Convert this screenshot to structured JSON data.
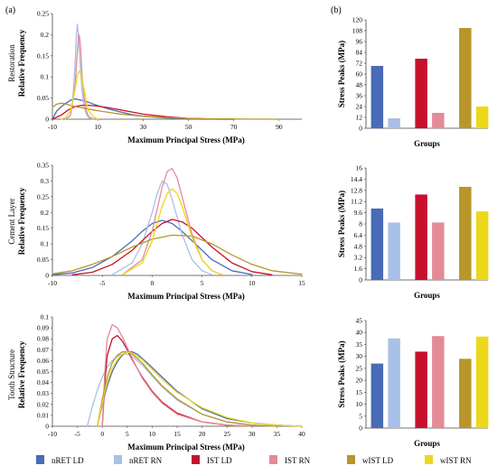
{
  "panel_labels": [
    "(a)",
    "(b)"
  ],
  "colors": {
    "nRET LD": "#4a6bb5",
    "nRET RN": "#a9c0e8",
    "IST LD": "#c8102e",
    "IST RN": "#e38b96",
    "wIST LD": "#b8962a",
    "wIST RN": "#ecd81a"
  },
  "legend": [
    "nRET LD",
    "nRET RN",
    "IST LD",
    "IST RN",
    "wIST LD",
    "wIST RN"
  ],
  "chart_data": [
    {
      "type": "line",
      "row_label": "Restoration",
      "ylabel": "Relative Frequency",
      "xlabel": "Maximum Principal Stress (MPa)",
      "xlim": [
        -10,
        100
      ],
      "ylim": [
        0,
        0.25
      ],
      "xticks": [
        "-10",
        "10",
        "30",
        "50",
        "70",
        "90"
      ],
      "xtick_values": [
        -10,
        10,
        30,
        50,
        70,
        90
      ],
      "yticks": [
        "0",
        "0.05",
        "0.1",
        "0.15",
        "0.2",
        "0.25"
      ],
      "ytick_values": [
        0,
        0.05,
        0.1,
        0.15,
        0.2,
        0.25
      ],
      "series": [
        {
          "name": "nRET LD",
          "x": [
            -10,
            -8,
            -6,
            -4,
            -2,
            0,
            2,
            4,
            6,
            8,
            10,
            15,
            20,
            25,
            30,
            40,
            50,
            60,
            70
          ],
          "y": [
            0,
            0.02,
            0.03,
            0.038,
            0.045,
            0.048,
            0.046,
            0.043,
            0.04,
            0.036,
            0.032,
            0.024,
            0.017,
            0.011,
            0.007,
            0.003,
            0.001,
            0.0004,
            0
          ]
        },
        {
          "name": "nRET RN",
          "x": [
            -4,
            -2,
            -1,
            0,
            0.5,
            1,
            1.5,
            2,
            3,
            4,
            5,
            6,
            8
          ],
          "y": [
            0,
            0.01,
            0.05,
            0.13,
            0.19,
            0.225,
            0.2,
            0.15,
            0.07,
            0.03,
            0.012,
            0.004,
            0
          ]
        },
        {
          "name": "IST LD",
          "x": [
            -10,
            -6,
            -3,
            0,
            3,
            6,
            10,
            15,
            20,
            25,
            30,
            40,
            50,
            60,
            70
          ],
          "y": [
            0,
            0.01,
            0.022,
            0.03,
            0.033,
            0.033,
            0.031,
            0.027,
            0.022,
            0.017,
            0.012,
            0.006,
            0.002,
            0.0005,
            0
          ]
        },
        {
          "name": "IST RN",
          "x": [
            -4,
            -2,
            0,
            1,
            1.5,
            2,
            2.5,
            3,
            4,
            5,
            6,
            8
          ],
          "y": [
            0,
            0.01,
            0.08,
            0.16,
            0.2,
            0.195,
            0.16,
            0.11,
            0.05,
            0.02,
            0.006,
            0
          ]
        },
        {
          "name": "wIST LD",
          "x": [
            -10,
            -8,
            -6,
            -4,
            -2,
            0,
            2,
            4,
            6,
            8,
            10,
            15,
            20,
            30,
            40,
            50,
            60,
            75,
            90
          ],
          "y": [
            0.028,
            0.036,
            0.038,
            0.036,
            0.033,
            0.03,
            0.028,
            0.026,
            0.024,
            0.022,
            0.02,
            0.016,
            0.012,
            0.007,
            0.004,
            0.002,
            0.001,
            0.0003,
            0
          ]
        },
        {
          "name": "wIST RN",
          "x": [
            -6,
            -4,
            -2,
            0,
            1,
            2,
            3,
            4,
            5,
            6,
            8,
            10
          ],
          "y": [
            0,
            0.005,
            0.02,
            0.07,
            0.105,
            0.115,
            0.1,
            0.07,
            0.04,
            0.02,
            0.006,
            0
          ]
        }
      ]
    },
    {
      "type": "bar",
      "ylabel": "Stress Peaks (MPa)",
      "xlabel": "Groups",
      "ylim": [
        0,
        120
      ],
      "yticks": [
        "0",
        "12",
        "24",
        "36",
        "48",
        "60",
        "72",
        "84",
        "96",
        "108",
        "120"
      ],
      "ytick_values": [
        0,
        12,
        24,
        36,
        48,
        60,
        72,
        84,
        96,
        108,
        120
      ],
      "categories": [
        "nRET LD",
        "nRET RN",
        "IST LD",
        "IST RN",
        "wIST LD",
        "wIST RN"
      ],
      "values": [
        69,
        11,
        77,
        17,
        111,
        24
      ]
    },
    {
      "type": "line",
      "row_label": "Cement Layer",
      "ylabel": "Relative Frequency",
      "xlabel": "Maximum Principal Stress (MPa)",
      "xlim": [
        -10,
        15
      ],
      "ylim": [
        0,
        0.35
      ],
      "xticks": [
        "-10",
        "-5",
        "0",
        "5",
        "10",
        "15"
      ],
      "xtick_values": [
        -10,
        -5,
        0,
        5,
        10,
        15
      ],
      "yticks": [
        "0",
        "0.05",
        "0.1",
        "0.15",
        "0.2",
        "0.25",
        "0.3",
        "0.35"
      ],
      "ytick_values": [
        0,
        0.05,
        0.1,
        0.15,
        0.2,
        0.25,
        0.3,
        0.35
      ],
      "series": [
        {
          "name": "nRET LD",
          "x": [
            -10,
            -8,
            -6,
            -4,
            -2,
            -1,
            0,
            1,
            2,
            3,
            4,
            6,
            8,
            10
          ],
          "y": [
            0.002,
            0.008,
            0.025,
            0.06,
            0.11,
            0.14,
            0.165,
            0.175,
            0.165,
            0.14,
            0.11,
            0.05,
            0.015,
            0.003
          ]
        },
        {
          "name": "nRET RN",
          "x": [
            -4,
            -2,
            -1,
            0,
            0.5,
            1,
            1.5,
            2,
            3,
            4,
            5,
            6
          ],
          "y": [
            0.002,
            0.04,
            0.1,
            0.2,
            0.26,
            0.3,
            0.29,
            0.24,
            0.13,
            0.05,
            0.015,
            0.002
          ]
        },
        {
          "name": "IST LD",
          "x": [
            -8,
            -6,
            -4,
            -2,
            0,
            1,
            2,
            3,
            4,
            6,
            8,
            10,
            12
          ],
          "y": [
            0.002,
            0.01,
            0.035,
            0.08,
            0.14,
            0.165,
            0.178,
            0.17,
            0.15,
            0.09,
            0.04,
            0.012,
            0.002
          ]
        },
        {
          "name": "IST RN",
          "x": [
            -3,
            -1,
            0,
            1,
            1.5,
            2,
            2.5,
            3,
            4,
            5,
            6,
            7
          ],
          "y": [
            0.002,
            0.05,
            0.14,
            0.28,
            0.33,
            0.34,
            0.31,
            0.25,
            0.13,
            0.05,
            0.015,
            0.002
          ]
        },
        {
          "name": "wIST LD",
          "x": [
            -10,
            -8,
            -6,
            -4,
            -2,
            0,
            2,
            4,
            6,
            8,
            10,
            12,
            15
          ],
          "y": [
            0.005,
            0.015,
            0.035,
            0.06,
            0.09,
            0.115,
            0.128,
            0.125,
            0.1,
            0.065,
            0.035,
            0.015,
            0.004
          ]
        },
        {
          "name": "wIST RN",
          "x": [
            -3,
            -1,
            0,
            1,
            1.5,
            2,
            2.5,
            3,
            4,
            5,
            6,
            7
          ],
          "y": [
            0.002,
            0.04,
            0.11,
            0.22,
            0.26,
            0.275,
            0.26,
            0.22,
            0.12,
            0.05,
            0.015,
            0.002
          ]
        }
      ]
    },
    {
      "type": "bar",
      "ylabel": "Stress Peaks (MPa)",
      "xlabel": "Groups",
      "ylim": [
        0,
        16
      ],
      "yticks": [
        "0",
        "1.6",
        "3.2",
        "4.8",
        "6.4",
        "8",
        "9.6",
        "11.2",
        "12.8",
        "14.4",
        "16"
      ],
      "ytick_values": [
        0,
        1.6,
        3.2,
        4.8,
        6.4,
        8,
        9.6,
        11.2,
        12.8,
        14.4,
        16
      ],
      "categories": [
        "nRET LD",
        "nRET RN",
        "IST LD",
        "IST RN",
        "wIST LD",
        "wIST RN"
      ],
      "values": [
        10.2,
        8.2,
        12.2,
        8.2,
        13.3,
        9.8
      ]
    },
    {
      "type": "line",
      "row_label": "Tooth Structure",
      "ylabel": "Relative Frequency",
      "xlabel": "Maximum Principal Stress (MPa)",
      "xlim": [
        -10,
        40
      ],
      "ylim": [
        0,
        0.1
      ],
      "xticks": [
        "-10",
        "-5",
        "0",
        "5",
        "10",
        "15",
        "20",
        "25",
        "30",
        "35",
        "40"
      ],
      "xtick_values": [
        -10,
        -5,
        0,
        5,
        10,
        15,
        20,
        25,
        30,
        35,
        40
      ],
      "yticks": [
        "0",
        "0.01",
        "0.02",
        "0.03",
        "0.04",
        "0.05",
        "0.06",
        "0.07",
        "0.08",
        "0.09",
        "0.1"
      ],
      "ytick_values": [
        0,
        0.01,
        0.02,
        0.03,
        0.04,
        0.05,
        0.06,
        0.07,
        0.08,
        0.09,
        0.1
      ],
      "series": [
        {
          "name": "nRET LD",
          "x": [
            -1,
            0,
            1,
            2,
            3,
            4,
            5,
            6,
            7,
            9,
            12,
            15,
            20,
            25,
            30,
            35,
            40
          ],
          "y": [
            0,
            0.02,
            0.037,
            0.05,
            0.059,
            0.065,
            0.068,
            0.068,
            0.066,
            0.058,
            0.045,
            0.032,
            0.016,
            0.007,
            0.003,
            0.001,
            0
          ]
        },
        {
          "name": "nRET RN",
          "x": [
            -3,
            -2,
            -1,
            0,
            1,
            2,
            3,
            4,
            5,
            6,
            8,
            10,
            12,
            15,
            20,
            25,
            30,
            35
          ],
          "y": [
            0,
            0.018,
            0.033,
            0.045,
            0.054,
            0.06,
            0.064,
            0.066,
            0.066,
            0.064,
            0.056,
            0.046,
            0.036,
            0.024,
            0.011,
            0.004,
            0.001,
            0
          ]
        },
        {
          "name": "IST LD",
          "x": [
            0,
            0.5,
            1,
            2,
            3,
            4,
            5,
            6,
            8,
            10,
            12,
            15,
            20,
            25,
            30
          ],
          "y": [
            0,
            0.04,
            0.065,
            0.08,
            0.083,
            0.078,
            0.07,
            0.061,
            0.045,
            0.032,
            0.022,
            0.012,
            0.004,
            0.001,
            0
          ]
        },
        {
          "name": "IST RN",
          "x": [
            0,
            0.5,
            1,
            2,
            3,
            4,
            5,
            6,
            8,
            10,
            12,
            15,
            20,
            25,
            30
          ],
          "y": [
            0,
            0.05,
            0.08,
            0.093,
            0.09,
            0.082,
            0.072,
            0.062,
            0.044,
            0.031,
            0.021,
            0.011,
            0.004,
            0.001,
            0
          ]
        },
        {
          "name": "wIST LD",
          "x": [
            -1,
            0,
            1,
            2,
            3,
            4,
            5,
            6,
            8,
            10,
            12,
            15,
            20,
            25,
            30,
            35
          ],
          "y": [
            0,
            0.025,
            0.045,
            0.058,
            0.065,
            0.068,
            0.068,
            0.066,
            0.058,
            0.047,
            0.037,
            0.025,
            0.011,
            0.004,
            0.001,
            0
          ]
        },
        {
          "name": "wIST RN",
          "x": [
            -1,
            0,
            1,
            2,
            3,
            4,
            5,
            6,
            8,
            10,
            12,
            15,
            20,
            25,
            30,
            35,
            40
          ],
          "y": [
            0,
            0.022,
            0.04,
            0.053,
            0.061,
            0.066,
            0.068,
            0.067,
            0.061,
            0.052,
            0.043,
            0.031,
            0.017,
            0.008,
            0.003,
            0.001,
            0
          ]
        }
      ]
    },
    {
      "type": "bar",
      "ylabel": "Stress Peaks (MPa)",
      "xlabel": "Groups",
      "ylim": [
        0,
        45
      ],
      "yticks": [
        "0",
        "5",
        "10",
        "15",
        "20",
        "25",
        "30",
        "35",
        "40",
        "45"
      ],
      "ytick_values": [
        0,
        5,
        10,
        15,
        20,
        25,
        30,
        35,
        40,
        45
      ],
      "categories": [
        "nRET LD",
        "nRET RN",
        "IST LD",
        "IST RN",
        "wIST LD",
        "wIST RN"
      ],
      "values": [
        27,
        37.5,
        32,
        38.5,
        29,
        38.3
      ]
    }
  ]
}
